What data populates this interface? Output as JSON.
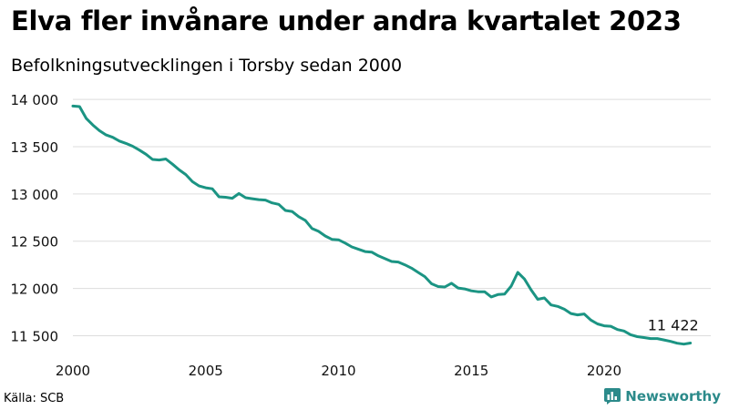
{
  "title": "Elva fler invånare under andra kvartalet 2023",
  "subtitle": "Befolkningsutvecklingen i Torsby sedan 2000",
  "source": "Källa: SCB",
  "brand": "Newsworthy",
  "colors": {
    "line": "#1b9483",
    "grid": "#dddddd",
    "brand": "#2b8a8a"
  },
  "chart_data": {
    "type": "line",
    "title": "Elva fler invånare under andra kvartalet 2023",
    "subtitle": "Befolkningsutvecklingen i Torsby sedan 2000",
    "xlabel": "",
    "ylabel": "",
    "xlim": [
      2000,
      2023.5
    ],
    "ylim": [
      11350,
      14050
    ],
    "xticks": [
      2000,
      2005,
      2010,
      2015,
      2020
    ],
    "xtick_labels": [
      "2000",
      "2005",
      "2010",
      "2015",
      "2020"
    ],
    "yticks": [
      11500,
      12000,
      12500,
      13000,
      13500,
      14000
    ],
    "ytick_labels": [
      "11 500",
      "12 000",
      "12 500",
      "13 000",
      "13 500",
      "14 000"
    ],
    "grid": "horizontal",
    "annotation": {
      "text": "11 422",
      "x": 2023.25,
      "y": 11422
    },
    "series": [
      {
        "x": [
          2000.0,
          2000.25,
          2000.5,
          2000.75,
          2001.0,
          2001.25,
          2001.5,
          2001.75,
          2002.0,
          2002.25,
          2002.5,
          2002.75,
          2003.0,
          2003.25,
          2003.5,
          2003.75,
          2004.0,
          2004.25,
          2004.5,
          2004.75,
          2005.0,
          2005.25,
          2005.5,
          2005.75,
          2006.0,
          2006.25,
          2006.5,
          2006.75,
          2007.0,
          2007.25,
          2007.5,
          2007.75,
          2008.0,
          2008.25,
          2008.5,
          2008.75,
          2009.0,
          2009.25,
          2009.5,
          2009.75,
          2010.0,
          2010.25,
          2010.5,
          2010.75,
          2011.0,
          2011.25,
          2011.5,
          2011.75,
          2012.0,
          2012.25,
          2012.5,
          2012.75,
          2013.0,
          2013.25,
          2013.5,
          2013.75,
          2014.0,
          2014.25,
          2014.5,
          2014.75,
          2015.0,
          2015.25,
          2015.5,
          2015.75,
          2016.0,
          2016.25,
          2016.5,
          2016.75,
          2017.0,
          2017.25,
          2017.5,
          2017.75,
          2018.0,
          2018.25,
          2018.5,
          2018.75,
          2019.0,
          2019.25,
          2019.5,
          2019.75,
          2020.0,
          2020.25,
          2020.5,
          2020.75,
          2021.0,
          2021.25,
          2021.5,
          2021.75,
          2022.0,
          2022.25,
          2022.5,
          2022.75,
          2023.0,
          2023.25
        ],
        "values": [
          13930,
          13925,
          13800,
          13730,
          13670,
          13625,
          13600,
          13560,
          13535,
          13505,
          13465,
          13420,
          13365,
          13360,
          13370,
          13315,
          13255,
          13205,
          13130,
          13085,
          13065,
          13055,
          12970,
          12965,
          12955,
          13005,
          12960,
          12950,
          12940,
          12935,
          12905,
          12890,
          12825,
          12815,
          12760,
          12720,
          12635,
          12605,
          12555,
          12520,
          12515,
          12480,
          12440,
          12415,
          12390,
          12385,
          12345,
          12315,
          12285,
          12280,
          12250,
          12215,
          12170,
          12125,
          12050,
          12020,
          12015,
          12055,
          12005,
          11995,
          11975,
          11965,
          11965,
          11910,
          11935,
          11940,
          12025,
          12170,
          12100,
          11985,
          11885,
          11900,
          11825,
          11810,
          11780,
          11735,
          11720,
          11730,
          11665,
          11625,
          11605,
          11600,
          11565,
          11550,
          11510,
          11490,
          11480,
          11470,
          11470,
          11455,
          11440,
          11420,
          11411,
          11422
        ]
      }
    ]
  }
}
